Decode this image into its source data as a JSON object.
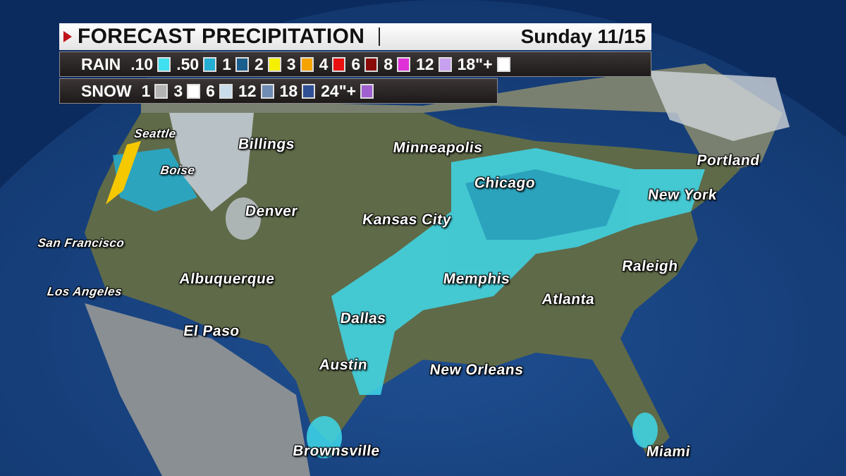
{
  "header": {
    "title": "FORECAST PRECIPITATION",
    "date": "Sunday 11/15"
  },
  "rain": {
    "label": "RAIN",
    "items": [
      {
        "value": ".10",
        "color": "#3fe0ef"
      },
      {
        "value": ".50",
        "color": "#23aed2"
      },
      {
        "value": "1",
        "color": "#1a5e8e"
      },
      {
        "value": "2",
        "color": "#f5f000"
      },
      {
        "value": "3",
        "color": "#f5a300"
      },
      {
        "value": "4",
        "color": "#e81010"
      },
      {
        "value": "6",
        "color": "#8a0a0a"
      },
      {
        "value": "8",
        "color": "#e030d8"
      },
      {
        "value": "12",
        "color": "#c8a0f0"
      },
      {
        "value": "18\"+",
        "color": "#ffffff"
      }
    ]
  },
  "snow": {
    "label": "SNOW",
    "items": [
      {
        "value": "1",
        "color": "#b4b4b4"
      },
      {
        "value": "3",
        "color": "#ffffff"
      },
      {
        "value": "6",
        "color": "#c8dcec"
      },
      {
        "value": "12",
        "color": "#6f8cb4"
      },
      {
        "value": "18",
        "color": "#2f5094"
      },
      {
        "value": "24\"+",
        "color": "#a060d0"
      }
    ]
  },
  "cities": [
    {
      "name": "Seattle",
      "small": true
    },
    {
      "name": "Billings"
    },
    {
      "name": "Minneapolis"
    },
    {
      "name": "Portland"
    },
    {
      "name": "Boise",
      "small": true
    },
    {
      "name": "Chicago"
    },
    {
      "name": "New York"
    },
    {
      "name": "Denver"
    },
    {
      "name": "Kansas City"
    },
    {
      "name": "San Francisco",
      "small": true
    },
    {
      "name": "Raleigh"
    },
    {
      "name": "Albuquerque"
    },
    {
      "name": "Memphis"
    },
    {
      "name": "Los Angeles",
      "small": true
    },
    {
      "name": "Atlanta"
    },
    {
      "name": "Dallas"
    },
    {
      "name": "El Paso"
    },
    {
      "name": "Austin"
    },
    {
      "name": "New Orleans"
    },
    {
      "name": "Brownsville"
    },
    {
      "name": "Miami"
    }
  ]
}
